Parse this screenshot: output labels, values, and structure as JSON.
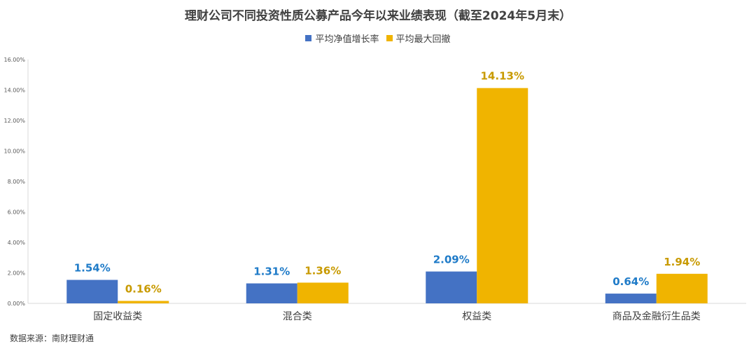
{
  "chart_data": {
    "type": "bar",
    "title": "理财公司不同投资性质公募产品今年以来业绩表现（截至2024年5月末）",
    "categories": [
      "固定收益类",
      "混合类",
      "权益类",
      "商品及金融衍生品类"
    ],
    "series": [
      {
        "name": "平均净值增长率",
        "values": [
          1.54,
          1.31,
          2.09,
          0.64
        ],
        "labels": [
          "1.54%",
          "1.31%",
          "2.09%",
          "0.64%"
        ],
        "color": "#4472C4"
      },
      {
        "name": "平均最大回撤",
        "values": [
          0.16,
          1.36,
          14.13,
          1.94
        ],
        "labels": [
          "0.16%",
          "1.36%",
          "14.13%",
          "1.94%"
        ],
        "color": "#F0B400"
      }
    ],
    "ylim": [
      0,
      16
    ],
    "yticks": [
      0,
      2,
      4,
      6,
      8,
      10,
      12,
      14,
      16
    ],
    "ytick_labels": [
      "0.00%",
      "2.00%",
      "4.00%",
      "6.00%",
      "8.00%",
      "10.00%",
      "12.00%",
      "14.00%",
      "16.00%"
    ],
    "grid": false,
    "legend": "top-center",
    "label_colors": [
      "#1F7BC8",
      "#C89A00"
    ]
  },
  "source": "数据来源：南财理财通"
}
